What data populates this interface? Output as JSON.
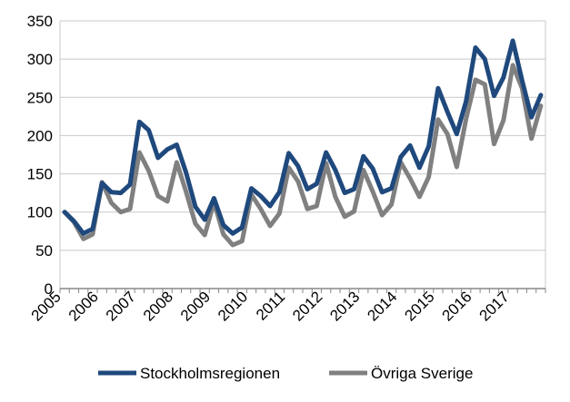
{
  "chart_data": {
    "type": "line",
    "title": "",
    "xlabel": "",
    "ylabel": "",
    "ylim": [
      0,
      350
    ],
    "yticks": [
      0,
      50,
      100,
      150,
      200,
      250,
      300,
      350
    ],
    "grid": "horizontal",
    "legend": "bottom",
    "x_tick_labels": [
      "2005",
      "2006",
      "2007",
      "2008",
      "2009",
      "2010",
      "2011",
      "2012",
      "2013",
      "2014",
      "2015",
      "2016",
      "2017"
    ],
    "x": [
      "2005Q1",
      "2005Q2",
      "2005Q3",
      "2005Q4",
      "2006Q1",
      "2006Q2",
      "2006Q3",
      "2006Q4",
      "2007Q1",
      "2007Q2",
      "2007Q3",
      "2007Q4",
      "2008Q1",
      "2008Q2",
      "2008Q3",
      "2008Q4",
      "2009Q1",
      "2009Q2",
      "2009Q3",
      "2009Q4",
      "2010Q1",
      "2010Q2",
      "2010Q3",
      "2010Q4",
      "2011Q1",
      "2011Q2",
      "2011Q3",
      "2011Q4",
      "2012Q1",
      "2012Q2",
      "2012Q3",
      "2012Q4",
      "2013Q1",
      "2013Q2",
      "2013Q3",
      "2013Q4",
      "2014Q1",
      "2014Q2",
      "2014Q3",
      "2014Q4",
      "2015Q1",
      "2015Q2",
      "2015Q3",
      "2015Q4",
      "2016Q1",
      "2016Q2",
      "2016Q3",
      "2016Q4",
      "2017Q1",
      "2017Q2",
      "2017Q3",
      "2017Q4"
    ],
    "series": [
      {
        "name": "Stockholmsregionen",
        "color": "#1f497d",
        "values": [
          100,
          88,
          72,
          78,
          138,
          126,
          125,
          136,
          218,
          207,
          171,
          182,
          188,
          152,
          107,
          90,
          118,
          83,
          72,
          80,
          131,
          121,
          108,
          126,
          177,
          160,
          130,
          137,
          178,
          155,
          125,
          130,
          173,
          157,
          126,
          131,
          172,
          187,
          158,
          186,
          262,
          231,
          202,
          245,
          315,
          300,
          252,
          276,
          324,
          272,
          224,
          253
        ]
      },
      {
        "name": "Övriga Sverige",
        "color": "#808080",
        "values": [
          100,
          87,
          65,
          71,
          139,
          112,
          100,
          104,
          178,
          154,
          121,
          114,
          165,
          127,
          85,
          70,
          113,
          71,
          57,
          62,
          123,
          104,
          82,
          98,
          158,
          140,
          104,
          108,
          164,
          120,
          94,
          101,
          155,
          127,
          96,
          110,
          165,
          144,
          120,
          146,
          221,
          202,
          159,
          222,
          273,
          267,
          189,
          220,
          292,
          262,
          196,
          239
        ]
      }
    ]
  }
}
